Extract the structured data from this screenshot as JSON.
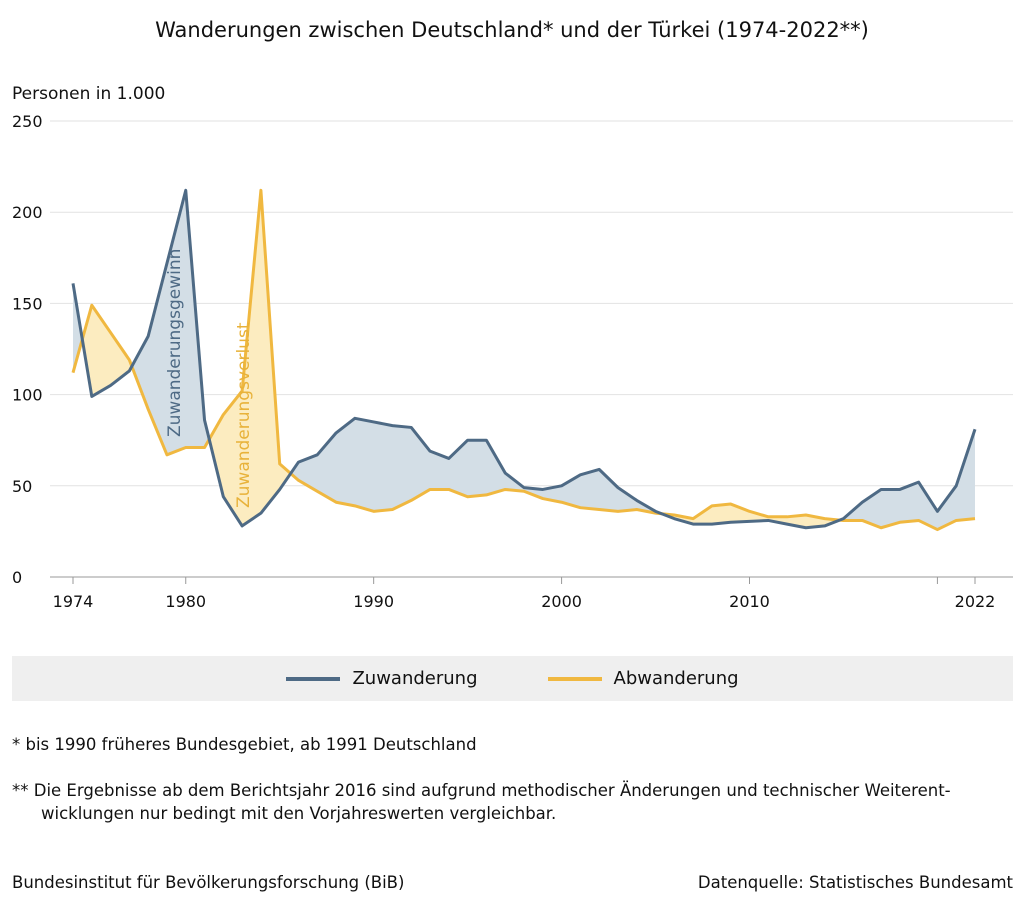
{
  "chart_data": {
    "type": "line",
    "title": "Wanderungen zwischen Deutschland* und der Türkei (1974-2022**)",
    "ylabel": "Personen in 1.000",
    "xlabel": "",
    "ylim": [
      0,
      250
    ],
    "xlim": [
      1974,
      2022
    ],
    "yticks": [
      0,
      50,
      100,
      150,
      200,
      250
    ],
    "xticks": [
      1974,
      1980,
      1990,
      2000,
      2010,
      2022
    ],
    "grid": true,
    "legend_position": "bottom",
    "x": [
      1974,
      1975,
      1976,
      1977,
      1978,
      1979,
      1980,
      1981,
      1982,
      1983,
      1984,
      1985,
      1986,
      1987,
      1988,
      1989,
      1990,
      1991,
      1992,
      1993,
      1994,
      1995,
      1996,
      1997,
      1998,
      1999,
      2000,
      2001,
      2002,
      2003,
      2004,
      2005,
      2006,
      2007,
      2008,
      2009,
      2010,
      2011,
      2012,
      2013,
      2014,
      2015,
      2016,
      2017,
      2018,
      2019,
      2020,
      2021,
      2022
    ],
    "series": [
      {
        "name": "Zuwanderung",
        "color": "#4e6a85",
        "values": [
          161,
          99,
          105,
          113,
          132,
          172,
          212,
          86,
          44,
          28,
          35,
          48,
          63,
          67,
          79,
          87,
          85,
          83,
          82,
          69,
          65,
          75,
          75,
          57,
          49,
          48,
          50,
          56,
          59,
          49,
          42,
          36,
          32,
          29,
          29,
          30,
          30.5,
          31,
          29,
          27,
          28,
          32,
          41,
          48,
          48,
          52,
          36,
          50,
          81
        ]
      },
      {
        "name": "Abwanderung",
        "color": "#f0b840",
        "values": [
          112,
          149,
          134,
          119,
          92,
          67,
          71,
          71,
          89,
          102,
          212,
          62,
          53,
          47,
          41,
          39,
          36,
          37,
          42,
          48,
          48,
          44,
          45,
          48,
          47,
          43,
          41,
          38,
          37,
          36,
          37,
          35,
          34,
          32,
          39,
          40,
          36,
          33,
          33,
          34,
          32,
          31,
          31,
          27,
          30,
          31,
          26,
          31,
          32
        ]
      }
    ],
    "annotations": [
      "Zuwanderungsgewinn",
      "Zuwanderungsverlust"
    ]
  },
  "notes": {
    "n1": "*   bis 1990 früheres Bundesgebiet, ab 1991 Deutschland",
    "n2a": "** Die Ergebnisse ab dem Berichtsjahr 2016 sind aufgrund methodischer Änderungen und technischer Weiterent-",
    "n2b": "wicklungen nur bedingt mit den Vorjahreswerten vergleichbar."
  },
  "footer": {
    "left": "Bundesinstitut für Bevölkerungsforschung (BiB)",
    "right": "Datenquelle: Statistisches Bundesamt"
  }
}
